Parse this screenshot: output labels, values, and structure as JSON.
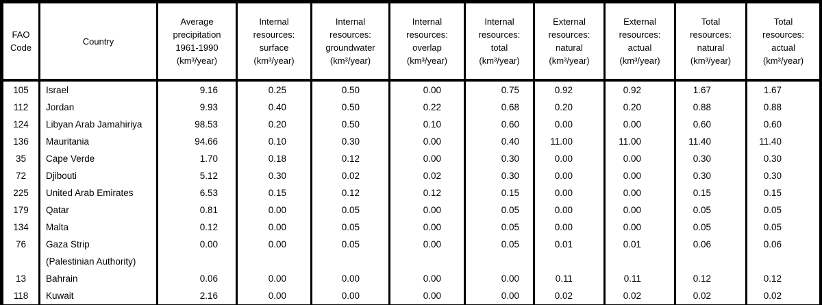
{
  "colors": {
    "border": "#000000",
    "text": "#000000",
    "background": "#ffffff"
  },
  "table": {
    "columns": [
      {
        "id": "fao_code",
        "label": "FAO\nCode"
      },
      {
        "id": "country",
        "label": "Country"
      },
      {
        "id": "precipitation",
        "label": "Average\nprecipitation\n1961-1990\n(km³/year)"
      },
      {
        "id": "internal_surface",
        "label": "Internal\nresources:\nsurface\n(km³/year)"
      },
      {
        "id": "internal_groundwater",
        "label": "Internal\nresources:\ngroundwater\n(km³/year)"
      },
      {
        "id": "internal_overlap",
        "label": "Internal\nresources:\noverlap\n(km³/year)"
      },
      {
        "id": "internal_total",
        "label": "Internal\nresources:\ntotal\n(km³/year)"
      },
      {
        "id": "external_natural",
        "label": "External\nresources:\nnatural\n(km³/year)"
      },
      {
        "id": "external_actual",
        "label": "External\nresources:\nactual\n(km³/year)"
      },
      {
        "id": "total_natural",
        "label": "Total\nresources:\nnatural\n(km³/year)"
      },
      {
        "id": "total_actual",
        "label": "Total\nresources:\nactual\n(km³/year)"
      }
    ],
    "rows": [
      {
        "code": "105",
        "country": "Israel",
        "two_line": false,
        "values": [
          "9.16",
          "0.25",
          "0.50",
          "0.00",
          "0.75",
          "0.92",
          "0.92",
          "1.67",
          "1.67"
        ]
      },
      {
        "code": "112",
        "country": "Jordan",
        "two_line": false,
        "values": [
          "9.93",
          "0.40",
          "0.50",
          "0.22",
          "0.68",
          "0.20",
          "0.20",
          "0.88",
          "0.88"
        ]
      },
      {
        "code": "124",
        "country": "Libyan Arab Jamahiriya",
        "two_line": false,
        "values": [
          "98.53",
          "0.20",
          "0.50",
          "0.10",
          "0.60",
          "0.00",
          "0.00",
          "0.60",
          "0.60"
        ]
      },
      {
        "code": "136",
        "country": "Mauritania",
        "two_line": false,
        "values": [
          "94.66",
          "0.10",
          "0.30",
          "0.00",
          "0.40",
          "11.00",
          "11.00",
          "11.40",
          "11.40"
        ]
      },
      {
        "code": "35",
        "country": "Cape Verde",
        "two_line": false,
        "values": [
          "1.70",
          "0.18",
          "0.12",
          "0.00",
          "0.30",
          "0.00",
          "0.00",
          "0.30",
          "0.30"
        ]
      },
      {
        "code": "72",
        "country": "Djibouti",
        "two_line": false,
        "values": [
          "5.12",
          "0.30",
          "0.02",
          "0.02",
          "0.30",
          "0.00",
          "0.00",
          "0.30",
          "0.30"
        ]
      },
      {
        "code": "225",
        "country": "United Arab Emirates",
        "two_line": false,
        "values": [
          "6.53",
          "0.15",
          "0.12",
          "0.12",
          "0.15",
          "0.00",
          "0.00",
          "0.15",
          "0.15"
        ]
      },
      {
        "code": "179",
        "country": "Qatar",
        "two_line": false,
        "values": [
          "0.81",
          "0.00",
          "0.05",
          "0.00",
          "0.05",
          "0.00",
          "0.00",
          "0.05",
          "0.05"
        ]
      },
      {
        "code": "134",
        "country": "Malta",
        "two_line": false,
        "values": [
          "0.12",
          "0.00",
          "0.05",
          "0.00",
          "0.05",
          "0.00",
          "0.00",
          "0.05",
          "0.05"
        ]
      },
      {
        "code": "76",
        "country": "Gaza Strip\n(Palestinian Authority)",
        "two_line": true,
        "values": [
          "0.00",
          "0.00",
          "0.05",
          "0.00",
          "0.05",
          "0.01",
          "0.01",
          "0.06",
          "0.06"
        ]
      },
      {
        "code": "13",
        "country": "Bahrain",
        "two_line": false,
        "values": [
          "0.06",
          "0.00",
          "0.00",
          "0.00",
          "0.00",
          "0.11",
          "0.11",
          "0.12",
          "0.12"
        ]
      },
      {
        "code": "118",
        "country": "Kuwait",
        "two_line": false,
        "values": [
          "2.16",
          "0.00",
          "0.00",
          "0.00",
          "0.00",
          "0.02",
          "0.02",
          "0.02",
          "0.02"
        ]
      }
    ]
  }
}
